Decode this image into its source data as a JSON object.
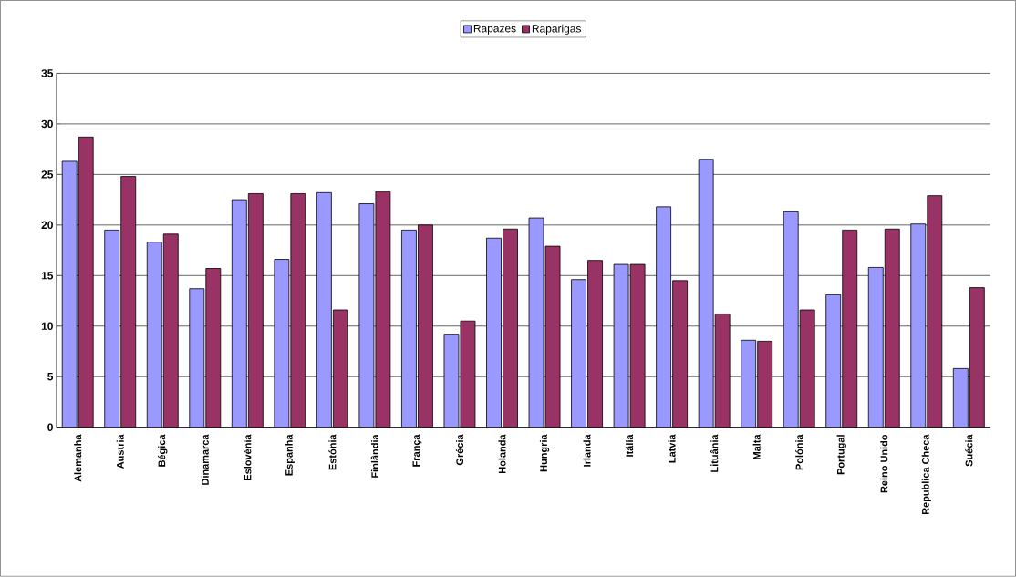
{
  "chart_data": {
    "type": "bar",
    "categories": [
      "Alemanha",
      "Austria",
      "Bégica",
      "Dinamarca",
      "Eslovénia",
      "Espanha",
      "Estónia",
      "Finlândia",
      "França",
      "Grécia",
      "Holanda",
      "Hungria",
      "Irlanda",
      "Itália",
      "Latvia",
      "Lituânia",
      "Malta",
      "Polónia",
      "Portugal",
      "Reino Unido",
      "Republica Checa",
      "Suécia"
    ],
    "series": [
      {
        "name": "Rapazes",
        "color": "#9999ff",
        "values": [
          26.3,
          19.5,
          18.3,
          13.7,
          22.5,
          16.6,
          23.2,
          22.1,
          19.5,
          9.2,
          18.7,
          20.7,
          14.6,
          16.1,
          21.8,
          26.5,
          8.6,
          21.3,
          13.1,
          15.8,
          20.1,
          5.8
        ]
      },
      {
        "name": "Raparigas",
        "color": "#993366",
        "values": [
          28.7,
          24.8,
          19.1,
          15.7,
          23.1,
          23.1,
          11.6,
          23.3,
          20.0,
          10.5,
          19.6,
          17.9,
          16.5,
          16.1,
          14.5,
          11.2,
          8.5,
          11.6,
          19.5,
          19.6,
          22.9,
          13.8
        ]
      }
    ],
    "ylim": [
      0,
      35
    ],
    "yticks": [
      0,
      5,
      10,
      15,
      20,
      25,
      30,
      35
    ],
    "grid": "y",
    "legend": "top"
  }
}
